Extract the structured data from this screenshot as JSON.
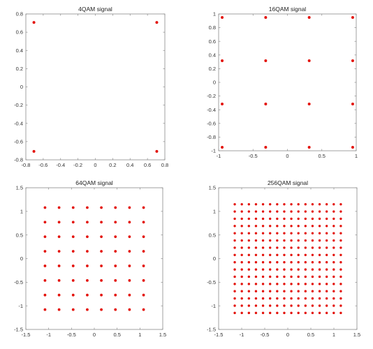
{
  "chart_data": [
    {
      "type": "scatter",
      "title": "4QAM signal",
      "xlim": [
        -0.8,
        0.8
      ],
      "ylim": [
        -0.8,
        0.8
      ],
      "xticks": [
        -0.8,
        -0.6,
        -0.4,
        -0.2,
        0,
        0.2,
        0.4,
        0.6,
        0.8
      ],
      "yticks": [
        -0.8,
        -0.6,
        -0.4,
        -0.2,
        0,
        0.2,
        0.4,
        0.6,
        0.8
      ],
      "xticklabels": [
        "-0.8",
        "-0.6",
        "-0.4",
        "-0.2",
        "0",
        "0.2",
        "0.4",
        "0.6",
        "0.8"
      ],
      "yticklabels": [
        "-0.8",
        "-0.6",
        "-0.4",
        "-0.2",
        "0",
        "0.2",
        "0.4",
        "0.6",
        "0.8"
      ],
      "levels": [
        -0.7071,
        0.7071
      ],
      "marker_color": "#e3120b"
    },
    {
      "type": "scatter",
      "title": "16QAM signal",
      "xlim": [
        -1,
        1
      ],
      "ylim": [
        -1,
        1
      ],
      "xticks": [
        -1,
        -0.5,
        0,
        0.5,
        1
      ],
      "yticks": [
        -1,
        -0.8,
        -0.6,
        -0.4,
        -0.2,
        0,
        0.2,
        0.4,
        0.6,
        0.8,
        1
      ],
      "xticklabels": [
        "-1",
        "-0.5",
        "0",
        "0.5",
        "1"
      ],
      "yticklabels": [
        "-1",
        "-0.8",
        "-0.6",
        "-0.4",
        "-0.2",
        "0",
        "0.2",
        "0.4",
        "0.6",
        "0.8",
        "1"
      ],
      "levels": [
        -0.9487,
        -0.3162,
        0.3162,
        0.9487
      ],
      "marker_color": "#e3120b"
    },
    {
      "type": "scatter",
      "title": "64QAM signal",
      "xlim": [
        -1.5,
        1.5
      ],
      "ylim": [
        -1.5,
        1.5
      ],
      "xticks": [
        -1.5,
        -1,
        -0.5,
        0,
        0.5,
        1,
        1.5
      ],
      "yticks": [
        -1.5,
        -1,
        -0.5,
        0,
        0.5,
        1,
        1.5
      ],
      "xticklabels": [
        "-1.5",
        "-1",
        "-0.5",
        "0",
        "0.5",
        "1",
        "1.5"
      ],
      "yticklabels": [
        "-1.5",
        "-1",
        "-0.5",
        "0",
        "0.5",
        "1",
        "1.5"
      ],
      "levels": [
        -1.0801,
        -0.7715,
        -0.4629,
        -0.1543,
        0.1543,
        0.4629,
        0.7715,
        1.0801
      ],
      "marker_color": "#e3120b"
    },
    {
      "type": "scatter",
      "title": "256QAM signal",
      "xlim": [
        -1.5,
        1.5
      ],
      "ylim": [
        -1.5,
        1.5
      ],
      "xticks": [
        -1.5,
        -1,
        -0.5,
        0,
        0.5,
        1,
        1.5
      ],
      "yticks": [
        -1.5,
        -1,
        -0.5,
        0,
        0.5,
        1,
        1.5
      ],
      "xticklabels": [
        "-1.5",
        "-1",
        "-0.5",
        "0",
        "0.5",
        "1",
        "1.5"
      ],
      "yticklabels": [
        "-1.5",
        "-1",
        "-0.5",
        "0",
        "0.5",
        "1",
        "1.5"
      ],
      "levels": [
        -1.1504,
        -0.9971,
        -0.8437,
        -0.6903,
        -0.5369,
        -0.3835,
        -0.2301,
        -0.0767,
        0.0767,
        0.2301,
        0.3835,
        0.5369,
        0.6903,
        0.8437,
        0.9971,
        1.1504
      ],
      "marker_color": "#e3120b"
    }
  ]
}
